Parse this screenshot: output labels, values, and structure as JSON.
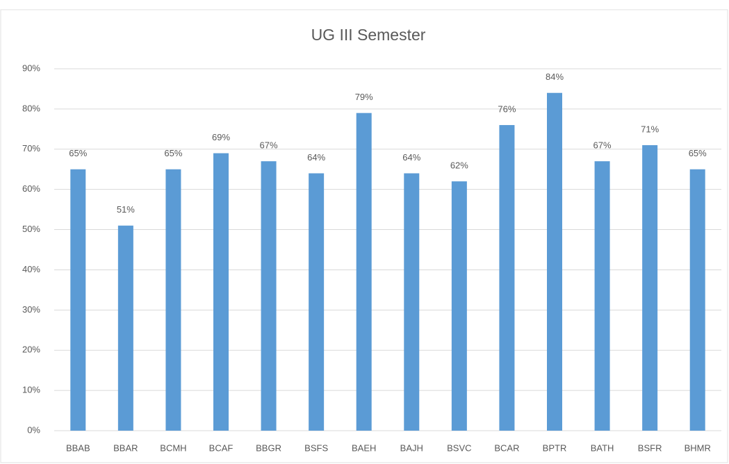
{
  "chart_data": {
    "type": "bar",
    "title": "UG III Semester",
    "categories": [
      "BBAB",
      "BBAR",
      "BCMH",
      "BCAF",
      "BBGR",
      "BSFS",
      "BAEH",
      "BAJH",
      "BSVC",
      "BCAR",
      "BPTR",
      "BATH",
      "BSFR",
      "BHMR"
    ],
    "values": [
      65,
      51,
      65,
      69,
      67,
      64,
      79,
      64,
      62,
      76,
      84,
      67,
      71,
      65
    ],
    "value_labels": [
      "65%",
      "51%",
      "65%",
      "69%",
      "67%",
      "64%",
      "79%",
      "64%",
      "62%",
      "76%",
      "84%",
      "67%",
      "71%",
      "65%"
    ],
    "color": "#5b9bd5",
    "ylim": [
      0,
      90
    ],
    "yticks": [
      {
        "value": 0,
        "label": "0%"
      },
      {
        "value": 10,
        "label": "10%"
      },
      {
        "value": 20,
        "label": "20%"
      },
      {
        "value": 30,
        "label": "30%"
      },
      {
        "value": 40,
        "label": "40%"
      },
      {
        "value": 50,
        "label": "50%"
      },
      {
        "value": 60,
        "label": "60%"
      },
      {
        "value": 70,
        "label": "70%"
      },
      {
        "value": 80,
        "label": "80%"
      },
      {
        "value": 90,
        "label": "90%"
      }
    ],
    "grid": true
  }
}
